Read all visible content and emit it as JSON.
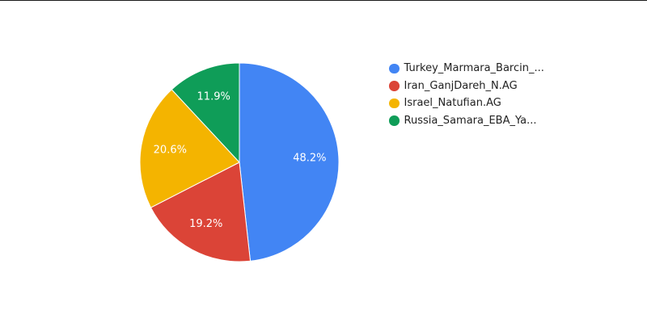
{
  "chart_data": {
    "type": "pie",
    "title": "",
    "legend_position": "right",
    "slices": [
      {
        "label": "Turkey_Marmara_Barcin_...",
        "percent": 48.2,
        "percent_label": "48.2%",
        "color": "#4285f4"
      },
      {
        "label": "Iran_GanjDareh_N.AG",
        "percent": 19.2,
        "percent_label": "19.2%",
        "color": "#db4437"
      },
      {
        "label": "Israel_Natufian.AG",
        "percent": 20.6,
        "percent_label": "20.6%",
        "color": "#f4b400"
      },
      {
        "label": "Russia_Samara_EBA_Ya...",
        "percent": 11.9,
        "percent_label": "11.9%",
        "color": "#0f9d58"
      }
    ]
  }
}
